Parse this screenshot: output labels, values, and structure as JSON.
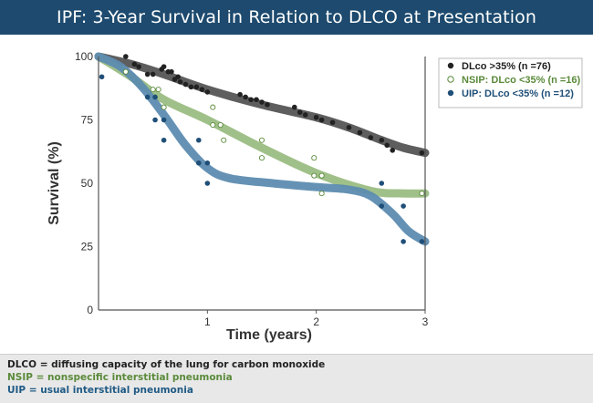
{
  "header": {
    "title": "IPF: 3-Year Survival in Relation to DLCO at Presentation"
  },
  "chart_data": {
    "type": "scatter",
    "xlabel": "Time  (years)",
    "ylabel": "Survival (%)",
    "xlim": [
      0,
      3
    ],
    "ylim": [
      0,
      100
    ],
    "x_ticks": [
      "1",
      "2",
      "3"
    ],
    "y_ticks": [
      "0",
      "25",
      "50",
      "75",
      "100"
    ],
    "grid": false,
    "legend_position": "top-right",
    "series": [
      {
        "name": "DLco >35% (n =76)",
        "color": "#222222",
        "curve_color": "#555555",
        "marker": "filled",
        "points": [
          [
            0.25,
            100
          ],
          [
            0.33,
            97
          ],
          [
            0.37,
            96
          ],
          [
            0.45,
            93
          ],
          [
            0.5,
            93
          ],
          [
            0.58,
            95
          ],
          [
            0.6,
            96
          ],
          [
            0.64,
            94
          ],
          [
            0.67,
            94
          ],
          [
            0.7,
            91
          ],
          [
            0.73,
            92
          ],
          [
            0.75,
            90
          ],
          [
            0.8,
            89
          ],
          [
            0.85,
            88
          ],
          [
            0.9,
            88
          ],
          [
            0.95,
            87
          ],
          [
            1.0,
            86
          ],
          [
            1.3,
            85
          ],
          [
            1.35,
            84
          ],
          [
            1.4,
            83
          ],
          [
            1.45,
            83
          ],
          [
            1.5,
            82
          ],
          [
            1.55,
            81
          ],
          [
            1.8,
            80
          ],
          [
            1.85,
            78
          ],
          [
            1.9,
            77
          ],
          [
            2.0,
            76
          ],
          [
            2.05,
            75
          ],
          [
            2.15,
            74
          ],
          [
            2.3,
            72
          ],
          [
            2.4,
            70
          ],
          [
            2.5,
            68
          ],
          [
            2.6,
            67
          ],
          [
            2.65,
            65
          ],
          [
            2.7,
            63
          ],
          [
            2.97,
            62
          ]
        ],
        "curve": [
          [
            0,
            100
          ],
          [
            0.3,
            97
          ],
          [
            0.6,
            93
          ],
          [
            1.0,
            87
          ],
          [
            1.5,
            81
          ],
          [
            2.0,
            76
          ],
          [
            2.3,
            72
          ],
          [
            2.6,
            67
          ],
          [
            2.8,
            64
          ],
          [
            3.0,
            62
          ]
        ]
      },
      {
        "name": "NSIP: DLco <35% (n =16)",
        "color": "#5a8a3a",
        "curve_color": "#9bbd83",
        "marker": "open",
        "points": [
          [
            0.25,
            94
          ],
          [
            0.5,
            87
          ],
          [
            0.55,
            87
          ],
          [
            0.6,
            80
          ],
          [
            1.05,
            80
          ],
          [
            1.05,
            73
          ],
          [
            1.12,
            73
          ],
          [
            1.15,
            67
          ],
          [
            1.5,
            67
          ],
          [
            1.5,
            60
          ],
          [
            1.98,
            60
          ],
          [
            1.98,
            53
          ],
          [
            2.05,
            53
          ],
          [
            2.05,
            46
          ],
          [
            2.97,
            46
          ]
        ],
        "curve": [
          [
            0,
            100
          ],
          [
            0.3,
            92
          ],
          [
            0.6,
            83
          ],
          [
            1.0,
            75
          ],
          [
            1.5,
            64
          ],
          [
            2.0,
            54
          ],
          [
            2.5,
            47
          ],
          [
            2.8,
            46
          ],
          [
            3.0,
            46
          ]
        ]
      },
      {
        "name": "UIP: DLco <35% (n =12)",
        "color": "#1f4f78",
        "curve_color": "#5d8cb0",
        "marker": "filled",
        "points": [
          [
            0.03,
            92
          ],
          [
            0.45,
            84
          ],
          [
            0.52,
            84
          ],
          [
            0.52,
            75
          ],
          [
            0.6,
            75
          ],
          [
            0.6,
            67
          ],
          [
            0.92,
            67
          ],
          [
            0.92,
            58
          ],
          [
            1.0,
            58
          ],
          [
            1.0,
            50
          ],
          [
            2.6,
            50
          ],
          [
            2.6,
            41
          ],
          [
            2.8,
            41
          ],
          [
            2.8,
            27
          ],
          [
            2.97,
            27
          ]
        ],
        "curve": [
          [
            0,
            100
          ],
          [
            0.2,
            96
          ],
          [
            0.4,
            88
          ],
          [
            0.6,
            77
          ],
          [
            0.8,
            65
          ],
          [
            1.0,
            56
          ],
          [
            1.2,
            52
          ],
          [
            1.6,
            50
          ],
          [
            2.0,
            48.5
          ],
          [
            2.3,
            47.5
          ],
          [
            2.5,
            45
          ],
          [
            2.7,
            38
          ],
          [
            2.85,
            31
          ],
          [
            3.0,
            27
          ]
        ]
      }
    ]
  },
  "footnotes": {
    "dlco": "DLCO = diffusing capacity of the lung for carbon monoxide",
    "nsip": "NSIP = nonspecific interstitial pneumonia",
    "uip": "UIP = usual interstitial pneumonia"
  }
}
